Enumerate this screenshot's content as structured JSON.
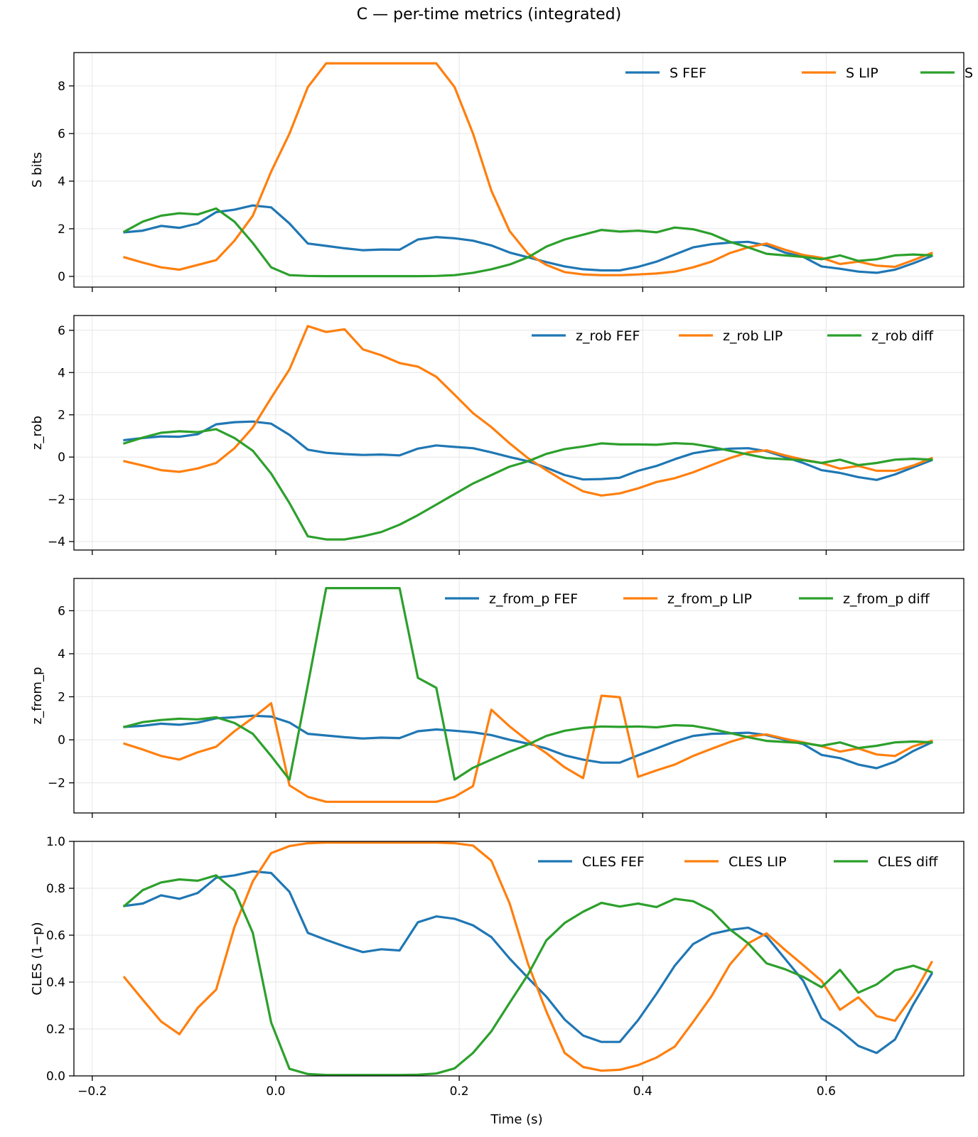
{
  "figure_title": "C — per-time metrics (integrated)",
  "xlabel": "Time (s)",
  "colors": {
    "FEF": "#1f77b4",
    "LIP": "#ff7f0e",
    "diff": "#2ca02c"
  },
  "chart_data": [
    {
      "type": "line",
      "ylabel": "S bits",
      "xlim": [
        -0.22,
        0.75
      ],
      "ylim": [
        -0.45,
        9.4
      ],
      "xticks": [
        -0.2,
        0.0,
        0.2,
        0.4,
        0.6
      ],
      "xtick_labels": [],
      "yticks": [
        0,
        2,
        4,
        6,
        8
      ],
      "ytick_labels": [
        "0",
        "2",
        "4",
        "6",
        "8"
      ],
      "grid": true,
      "legend": "top-right",
      "x": [
        -0.165,
        -0.145,
        -0.125,
        -0.105,
        -0.085,
        -0.065,
        -0.045,
        -0.025,
        -0.005,
        0.015,
        0.035,
        0.055,
        0.075,
        0.095,
        0.115,
        0.135,
        0.155,
        0.175,
        0.195,
        0.215,
        0.235,
        0.255,
        0.275,
        0.295,
        0.315,
        0.335,
        0.355,
        0.375,
        0.395,
        0.415,
        0.435,
        0.455,
        0.475,
        0.495,
        0.515,
        0.535,
        0.555,
        0.575,
        0.595,
        0.615,
        0.635,
        0.655,
        0.675,
        0.695,
        0.715
      ],
      "series": [
        {
          "name": "S FEF",
          "color_key": "FEF",
          "values": [
            1.85,
            1.92,
            2.12,
            2.04,
            2.22,
            2.7,
            2.8,
            2.98,
            2.9,
            2.22,
            1.38,
            1.28,
            1.18,
            1.1,
            1.13,
            1.12,
            1.55,
            1.65,
            1.6,
            1.5,
            1.3,
            1.0,
            0.8,
            0.6,
            0.42,
            0.3,
            0.25,
            0.25,
            0.4,
            0.62,
            0.92,
            1.22,
            1.35,
            1.42,
            1.45,
            1.3,
            1.0,
            0.82,
            0.42,
            0.32,
            0.2,
            0.15,
            0.28,
            0.55,
            0.85
          ]
        },
        {
          "name": "S LIP",
          "color_key": "LIP",
          "values": [
            0.8,
            0.58,
            0.38,
            0.28,
            0.48,
            0.68,
            1.5,
            2.55,
            4.4,
            6.0,
            7.95,
            8.95,
            8.95,
            8.95,
            8.95,
            8.95,
            8.95,
            8.95,
            7.95,
            6.0,
            3.6,
            1.9,
            0.95,
            0.48,
            0.18,
            0.08,
            0.05,
            0.05,
            0.08,
            0.12,
            0.2,
            0.38,
            0.62,
            0.98,
            1.22,
            1.38,
            1.12,
            0.9,
            0.78,
            0.52,
            0.62,
            0.45,
            0.4,
            0.68,
            0.98
          ]
        },
        {
          "name": "S diff",
          "color_key": "diff",
          "values": [
            1.88,
            2.3,
            2.55,
            2.65,
            2.6,
            2.85,
            2.3,
            1.4,
            0.38,
            0.05,
            0.02,
            0.01,
            0.01,
            0.01,
            0.01,
            0.01,
            0.01,
            0.02,
            0.05,
            0.15,
            0.3,
            0.5,
            0.8,
            1.25,
            1.55,
            1.75,
            1.95,
            1.88,
            1.92,
            1.85,
            2.05,
            1.98,
            1.78,
            1.45,
            1.22,
            0.95,
            0.88,
            0.82,
            0.72,
            0.88,
            0.65,
            0.72,
            0.88,
            0.92,
            0.88
          ]
        }
      ]
    },
    {
      "type": "line",
      "ylabel": "z_rob",
      "xlim": [
        -0.22,
        0.75
      ],
      "ylim": [
        -4.4,
        6.7
      ],
      "xticks": [
        -0.2,
        0.0,
        0.2,
        0.4,
        0.6
      ],
      "xtick_labels": [],
      "yticks": [
        -4,
        -2,
        0,
        2,
        4,
        6
      ],
      "ytick_labels": [
        "−4",
        "−2",
        "0",
        "2",
        "4",
        "6"
      ],
      "grid": true,
      "legend": "top-right",
      "x": [
        -0.165,
        -0.145,
        -0.125,
        -0.105,
        -0.085,
        -0.065,
        -0.045,
        -0.025,
        -0.005,
        0.015,
        0.035,
        0.055,
        0.075,
        0.095,
        0.115,
        0.135,
        0.155,
        0.175,
        0.195,
        0.215,
        0.235,
        0.255,
        0.275,
        0.295,
        0.315,
        0.335,
        0.355,
        0.375,
        0.395,
        0.415,
        0.435,
        0.455,
        0.475,
        0.495,
        0.515,
        0.535,
        0.555,
        0.575,
        0.595,
        0.615,
        0.635,
        0.655,
        0.675,
        0.695,
        0.715
      ],
      "series": [
        {
          "name": "z_rob FEF",
          "color_key": "FEF",
          "values": [
            0.8,
            0.9,
            0.98,
            0.96,
            1.08,
            1.55,
            1.65,
            1.68,
            1.58,
            1.05,
            0.35,
            0.2,
            0.14,
            0.1,
            0.12,
            0.08,
            0.4,
            0.55,
            0.48,
            0.42,
            0.22,
            0.0,
            -0.2,
            -0.5,
            -0.85,
            -1.06,
            -1.04,
            -0.98,
            -0.65,
            -0.42,
            -0.1,
            0.18,
            0.32,
            0.4,
            0.42,
            0.28,
            0.0,
            -0.28,
            -0.62,
            -0.75,
            -0.95,
            -1.08,
            -0.82,
            -0.48,
            -0.15
          ]
        },
        {
          "name": "z_rob LIP",
          "color_key": "LIP",
          "values": [
            -0.2,
            -0.4,
            -0.62,
            -0.7,
            -0.54,
            -0.28,
            0.42,
            1.4,
            2.8,
            4.15,
            6.2,
            5.92,
            6.05,
            5.1,
            4.82,
            4.45,
            4.28,
            3.8,
            2.95,
            2.08,
            1.42,
            0.65,
            -0.05,
            -0.62,
            -1.15,
            -1.62,
            -1.82,
            -1.72,
            -1.48,
            -1.18,
            -1.0,
            -0.72,
            -0.38,
            -0.05,
            0.22,
            0.32,
            0.08,
            -0.12,
            -0.28,
            -0.55,
            -0.42,
            -0.65,
            -0.65,
            -0.4,
            -0.05
          ]
        },
        {
          "name": "z_rob diff",
          "color_key": "diff",
          "values": [
            0.65,
            0.92,
            1.15,
            1.22,
            1.18,
            1.32,
            0.9,
            0.3,
            -0.78,
            -2.18,
            -3.75,
            -3.9,
            -3.9,
            -3.75,
            -3.55,
            -3.2,
            -2.75,
            -2.25,
            -1.75,
            -1.25,
            -0.85,
            -0.45,
            -0.2,
            0.15,
            0.38,
            0.5,
            0.65,
            0.6,
            0.6,
            0.58,
            0.66,
            0.62,
            0.48,
            0.3,
            0.12,
            -0.05,
            -0.1,
            -0.15,
            -0.28,
            -0.12,
            -0.38,
            -0.28,
            -0.12,
            -0.08,
            -0.12
          ]
        }
      ]
    },
    {
      "type": "line",
      "ylabel": "z_from_p",
      "xlim": [
        -0.22,
        0.75
      ],
      "ylim": [
        -3.4,
        7.5
      ],
      "xticks": [
        -0.2,
        0.0,
        0.2,
        0.4,
        0.6
      ],
      "xtick_labels": [],
      "yticks": [
        -2,
        0,
        2,
        4,
        6
      ],
      "ytick_labels": [
        "−2",
        "0",
        "2",
        "4",
        "6"
      ],
      "grid": true,
      "legend": "top-right",
      "x": [
        -0.165,
        -0.145,
        -0.125,
        -0.105,
        -0.085,
        -0.065,
        -0.045,
        -0.025,
        -0.005,
        0.015,
        0.035,
        0.055,
        0.075,
        0.095,
        0.115,
        0.135,
        0.155,
        0.175,
        0.195,
        0.215,
        0.235,
        0.255,
        0.275,
        0.295,
        0.315,
        0.335,
        0.355,
        0.375,
        0.395,
        0.415,
        0.435,
        0.455,
        0.475,
        0.495,
        0.515,
        0.535,
        0.555,
        0.575,
        0.595,
        0.615,
        0.635,
        0.655,
        0.675,
        0.695,
        0.715
      ],
      "series": [
        {
          "name": "z_from_p FEF",
          "color_key": "FEF",
          "values": [
            0.6,
            0.65,
            0.75,
            0.7,
            0.8,
            1.0,
            1.05,
            1.12,
            1.08,
            0.8,
            0.28,
            0.2,
            0.12,
            0.06,
            0.1,
            0.08,
            0.4,
            0.48,
            0.42,
            0.35,
            0.22,
            0.0,
            -0.18,
            -0.4,
            -0.72,
            -0.92,
            -1.06,
            -1.06,
            -0.72,
            -0.4,
            -0.08,
            0.18,
            0.28,
            0.3,
            0.33,
            0.22,
            0.0,
            -0.2,
            -0.7,
            -0.85,
            -1.15,
            -1.32,
            -1.02,
            -0.52,
            -0.12
          ]
        },
        {
          "name": "z_from_p LIP",
          "color_key": "LIP",
          "values": [
            -0.18,
            -0.45,
            -0.75,
            -0.92,
            -0.58,
            -0.32,
            0.4,
            1.02,
            1.7,
            -2.12,
            -2.65,
            -2.88,
            -2.88,
            -2.88,
            -2.88,
            -2.88,
            -2.88,
            -2.88,
            -2.65,
            -2.15,
            1.4,
            0.62,
            -0.05,
            -0.62,
            -1.28,
            -1.78,
            2.05,
            1.98,
            -1.72,
            -1.42,
            -1.15,
            -0.75,
            -0.42,
            -0.1,
            0.15,
            0.25,
            0.05,
            -0.12,
            -0.3,
            -0.55,
            -0.4,
            -0.68,
            -0.75,
            -0.3,
            -0.05
          ]
        },
        {
          "name": "z_from_p diff",
          "color_key": "diff",
          "values": [
            0.6,
            0.82,
            0.92,
            0.98,
            0.95,
            1.05,
            0.78,
            0.28,
            -0.75,
            -1.85,
            2.55,
            7.05,
            7.05,
            7.05,
            7.05,
            7.05,
            2.88,
            2.42,
            -1.85,
            -1.3,
            -0.92,
            -0.55,
            -0.22,
            0.18,
            0.42,
            0.55,
            0.62,
            0.6,
            0.62,
            0.58,
            0.68,
            0.65,
            0.5,
            0.32,
            0.12,
            -0.05,
            -0.1,
            -0.15,
            -0.28,
            -0.12,
            -0.38,
            -0.28,
            -0.12,
            -0.08,
            -0.12
          ]
        }
      ]
    },
    {
      "type": "line",
      "ylabel": "CLES (1−p)",
      "xlim": [
        -0.22,
        0.75
      ],
      "ylim": [
        0.0,
        1.0
      ],
      "xticks": [
        -0.2,
        0.0,
        0.2,
        0.4,
        0.6
      ],
      "xtick_labels": [
        "−0.2",
        "0.0",
        "0.2",
        "0.4",
        "0.6"
      ],
      "yticks": [
        0.0,
        0.2,
        0.4,
        0.6,
        0.8,
        1.0
      ],
      "ytick_labels": [
        "0.0",
        "0.2",
        "0.4",
        "0.6",
        "0.8",
        "1.0"
      ],
      "grid": true,
      "legend": "top-right",
      "x": [
        -0.165,
        -0.145,
        -0.125,
        -0.105,
        -0.085,
        -0.065,
        -0.045,
        -0.025,
        -0.005,
        0.015,
        0.035,
        0.055,
        0.075,
        0.095,
        0.115,
        0.135,
        0.155,
        0.175,
        0.195,
        0.215,
        0.235,
        0.255,
        0.275,
        0.295,
        0.315,
        0.335,
        0.355,
        0.375,
        0.395,
        0.415,
        0.435,
        0.455,
        0.475,
        0.495,
        0.515,
        0.535,
        0.555,
        0.575,
        0.595,
        0.615,
        0.635,
        0.655,
        0.675,
        0.695,
        0.715
      ],
      "series": [
        {
          "name": "CLES FEF",
          "color_key": "FEF",
          "values": [
            0.725,
            0.735,
            0.77,
            0.755,
            0.78,
            0.845,
            0.855,
            0.872,
            0.865,
            0.785,
            0.61,
            0.58,
            0.552,
            0.528,
            0.54,
            0.535,
            0.655,
            0.68,
            0.67,
            0.642,
            0.592,
            0.5,
            0.418,
            0.338,
            0.24,
            0.172,
            0.145,
            0.145,
            0.238,
            0.35,
            0.47,
            0.562,
            0.605,
            0.622,
            0.632,
            0.595,
            0.5,
            0.405,
            0.245,
            0.195,
            0.128,
            0.098,
            0.155,
            0.305,
            0.435
          ]
        },
        {
          "name": "CLES LIP",
          "color_key": "LIP",
          "values": [
            0.42,
            0.325,
            0.232,
            0.178,
            0.29,
            0.368,
            0.635,
            0.83,
            0.95,
            0.98,
            0.992,
            0.995,
            0.995,
            0.995,
            0.995,
            0.995,
            0.995,
            0.995,
            0.992,
            0.982,
            0.918,
            0.735,
            0.478,
            0.275,
            0.098,
            0.038,
            0.022,
            0.026,
            0.046,
            0.078,
            0.125,
            0.23,
            0.34,
            0.475,
            0.565,
            0.608,
            0.538,
            0.472,
            0.405,
            0.282,
            0.335,
            0.255,
            0.235,
            0.345,
            0.485
          ]
        },
        {
          "name": "CLES diff",
          "color_key": "diff",
          "values": [
            0.725,
            0.792,
            0.825,
            0.838,
            0.832,
            0.855,
            0.79,
            0.61,
            0.228,
            0.03,
            0.008,
            0.004,
            0.004,
            0.004,
            0.004,
            0.004,
            0.005,
            0.01,
            0.032,
            0.098,
            0.19,
            0.312,
            0.432,
            0.578,
            0.652,
            0.7,
            0.738,
            0.722,
            0.735,
            0.72,
            0.755,
            0.745,
            0.705,
            0.625,
            0.565,
            0.48,
            0.455,
            0.422,
            0.378,
            0.452,
            0.355,
            0.39,
            0.45,
            0.47,
            0.442
          ]
        }
      ]
    }
  ]
}
